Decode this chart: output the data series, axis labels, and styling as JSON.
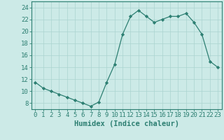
{
  "x": [
    0,
    1,
    2,
    3,
    4,
    5,
    6,
    7,
    8,
    9,
    10,
    11,
    12,
    13,
    14,
    15,
    16,
    17,
    18,
    19,
    20,
    21,
    22,
    23
  ],
  "y": [
    11.5,
    10.5,
    10.0,
    9.5,
    9.0,
    8.5,
    8.0,
    7.5,
    8.2,
    11.5,
    14.5,
    19.5,
    22.5,
    23.5,
    22.5,
    21.5,
    22.0,
    22.5,
    22.5,
    23.0,
    21.5,
    19.5,
    15.0,
    14.0
  ],
  "line_color": "#2d7f72",
  "marker": "D",
  "marker_size": 2.2,
  "bg_color": "#cceae7",
  "grid_color": "#aad4d0",
  "xlabel": "Humidex (Indice chaleur)",
  "xlim": [
    -0.5,
    23.5
  ],
  "ylim": [
    7.0,
    25.0
  ],
  "yticks": [
    8,
    10,
    12,
    14,
    16,
    18,
    20,
    22,
    24
  ],
  "xticks": [
    0,
    1,
    2,
    3,
    4,
    5,
    6,
    7,
    8,
    9,
    10,
    11,
    12,
    13,
    14,
    15,
    16,
    17,
    18,
    19,
    20,
    21,
    22,
    23
  ],
  "tick_label_fontsize": 6.5,
  "xlabel_fontsize": 7.5,
  "tick_color": "#2d7f72",
  "spine_color": "#2d7f72",
  "linewidth": 0.9
}
